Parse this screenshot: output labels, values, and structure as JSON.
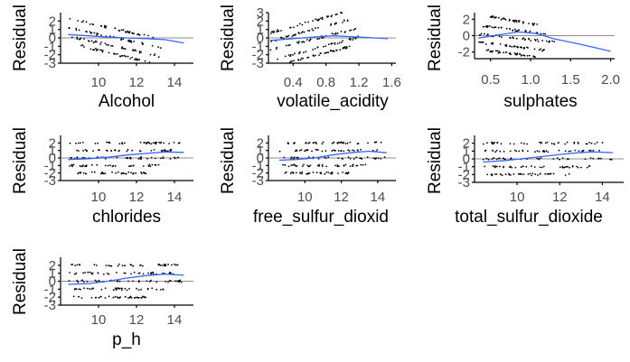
{
  "chart_data": [
    {
      "type": "scatter",
      "xlabel": "Alcohol",
      "ylabel": "Residual",
      "xlim": [
        8.0,
        15.0
      ],
      "ylim": [
        -3.0,
        3.0
      ],
      "xticks": [
        "10",
        "12",
        "14"
      ],
      "yticks": [
        "2",
        "1",
        "0",
        "-1",
        "-2",
        "-3"
      ],
      "bands": [
        [
          8.4,
          13.0,
          2.3,
          0.0
        ],
        [
          8.4,
          13.3,
          1.2,
          -1.2
        ],
        [
          8.4,
          13.3,
          0.2,
          -2.2
        ],
        [
          9.0,
          12.8,
          -0.9,
          -3.0
        ]
      ],
      "smooth": [
        [
          8.4,
          0.4
        ],
        [
          9.5,
          0.25
        ],
        [
          10.5,
          0.1
        ],
        [
          11.5,
          0.0
        ],
        [
          12.5,
          -0.1
        ],
        [
          13.5,
          -0.2
        ],
        [
          14.5,
          -0.6
        ]
      ],
      "ref_y": 0,
      "grid": false,
      "smooth_color": "#3366ff"
    },
    {
      "type": "scatter",
      "xlabel": "volatile_acidity",
      "ylabel": "Residual",
      "xlim": [
        0.1,
        1.65
      ],
      "ylim": [
        -3.0,
        3.0
      ],
      "xticks": [
        "0.4",
        "0.8",
        "1.2",
        "1.6"
      ],
      "yticks": [
        "3",
        "2",
        "1",
        "0",
        "-1",
        "-2",
        "-3"
      ],
      "bands": [
        [
          0.12,
          1.0,
          0.6,
          3.0
        ],
        [
          0.12,
          1.1,
          -0.4,
          2.2
        ],
        [
          0.12,
          1.2,
          -1.4,
          1.2
        ],
        [
          0.2,
          1.2,
          -2.5,
          0.1
        ],
        [
          0.3,
          1.1,
          -3.0,
          -1.0
        ]
      ],
      "smooth": [
        [
          0.12,
          -0.3
        ],
        [
          0.4,
          -0.1
        ],
        [
          0.7,
          0.15
        ],
        [
          0.9,
          0.25
        ],
        [
          1.1,
          0.15
        ],
        [
          1.3,
          0.05
        ],
        [
          1.55,
          -0.1
        ]
      ],
      "ref_y": 0,
      "grid": false,
      "smooth_color": "#3366ff"
    },
    {
      "type": "scatter",
      "xlabel": "sulphates",
      "ylabel": "Residual",
      "xlim": [
        0.3,
        2.05
      ],
      "ylim": [
        -2.8,
        2.8
      ],
      "xticks": [
        "0.5",
        "1.0",
        "1.5",
        "2.0"
      ],
      "yticks": [
        "2",
        "0",
        "-2"
      ],
      "bands": [
        [
          0.5,
          1.1,
          2.3,
          1.3
        ],
        [
          0.4,
          1.2,
          1.2,
          0.2
        ],
        [
          0.35,
          1.3,
          0.2,
          -0.8
        ],
        [
          0.35,
          1.2,
          -0.8,
          -1.8
        ],
        [
          0.45,
          1.1,
          -1.8,
          -2.6
        ]
      ],
      "smooth": [
        [
          0.35,
          -0.3
        ],
        [
          0.6,
          0.1
        ],
        [
          0.85,
          0.45
        ],
        [
          1.05,
          0.3
        ],
        [
          1.3,
          -0.4
        ],
        [
          1.6,
          -1.0
        ],
        [
          2.0,
          -1.9
        ]
      ],
      "ref_y": 0,
      "grid": false,
      "smooth_color": "#3366ff"
    },
    {
      "type": "scatter",
      "xlabel": "chlorides",
      "ylabel": "Residual",
      "xlim": [
        8.0,
        15.0
      ],
      "ylim": [
        -3.0,
        3.0
      ],
      "xticks": [
        "10",
        "12",
        "14"
      ],
      "yticks": [
        "2",
        "1",
        "0",
        "-1",
        "-2",
        "-3"
      ],
      "bands": [
        [
          8.4,
          14.0,
          1.0,
          1.0
        ],
        [
          8.4,
          14.5,
          0.0,
          0.0
        ],
        [
          8.4,
          13.5,
          -1.0,
          -1.0
        ],
        [
          8.6,
          12.5,
          -2.0,
          -2.0
        ],
        [
          8.4,
          14.3,
          2.0,
          2.0
        ]
      ],
      "smooth": [
        [
          8.4,
          -0.2
        ],
        [
          9.5,
          -0.1
        ],
        [
          10.5,
          0.1
        ],
        [
          11.5,
          0.4
        ],
        [
          12.5,
          0.6
        ],
        [
          13.5,
          0.8
        ],
        [
          14.5,
          0.75
        ]
      ],
      "ref_y": 0,
      "grid": false,
      "smooth_color": "#3366ff"
    },
    {
      "type": "scatter",
      "xlabel": "free_sulfur_dioxid",
      "ylabel": "Residual",
      "xlim": [
        8.0,
        15.0
      ],
      "ylim": [
        -3.0,
        3.0
      ],
      "xticks": [
        "10",
        "12",
        "14"
      ],
      "yticks": [
        "2",
        "1",
        "0",
        "-1",
        "-2",
        "-3"
      ],
      "bands": [
        [
          8.6,
          14.0,
          1.0,
          1.0
        ],
        [
          8.6,
          14.5,
          0.0,
          0.0
        ],
        [
          8.6,
          13.5,
          -1.0,
          -1.0
        ],
        [
          8.8,
          12.5,
          -2.0,
          -2.0
        ],
        [
          9.0,
          14.3,
          2.0,
          2.0
        ]
      ],
      "smooth": [
        [
          8.6,
          -0.3
        ],
        [
          9.5,
          -0.2
        ],
        [
          10.5,
          0.0
        ],
        [
          11.5,
          0.4
        ],
        [
          12.5,
          0.7
        ],
        [
          13.5,
          0.9
        ],
        [
          14.5,
          0.7
        ]
      ],
      "ref_y": 0,
      "grid": false,
      "smooth_color": "#3366ff"
    },
    {
      "type": "scatter",
      "xlabel": "total_sulfur_dioxide",
      "ylabel": "Residual",
      "xlim": [
        8.0,
        15.0
      ],
      "ylim": [
        -3.0,
        3.0
      ],
      "xticks": [
        "10",
        "12",
        "14"
      ],
      "yticks": [
        "2",
        "1",
        "0",
        "-1",
        "-2",
        "-3"
      ],
      "bands": [
        [
          8.4,
          14.0,
          1.0,
          1.0
        ],
        [
          8.4,
          14.5,
          0.0,
          0.0
        ],
        [
          8.4,
          13.5,
          -1.0,
          -1.0
        ],
        [
          8.6,
          12.5,
          -2.0,
          -2.0
        ],
        [
          8.4,
          14.3,
          2.0,
          2.0
        ]
      ],
      "smooth": [
        [
          8.4,
          -0.4
        ],
        [
          9.5,
          -0.2
        ],
        [
          10.5,
          0.1
        ],
        [
          11.5,
          0.4
        ],
        [
          12.5,
          0.7
        ],
        [
          13.5,
          0.9
        ],
        [
          14.5,
          0.8
        ]
      ],
      "ref_y": 0,
      "grid": false,
      "smooth_color": "#3366ff"
    },
    {
      "type": "scatter",
      "xlabel": "p_h",
      "ylabel": "Residual",
      "xlim": [
        8.0,
        15.0
      ],
      "ylim": [
        -3.0,
        3.0
      ],
      "xticks": [
        "10",
        "12",
        "14"
      ],
      "yticks": [
        "2",
        "1",
        "0",
        "-1",
        "-2",
        "-3"
      ],
      "bands": [
        [
          8.4,
          14.0,
          1.0,
          1.0
        ],
        [
          8.4,
          14.5,
          0.0,
          0.0
        ],
        [
          8.4,
          13.5,
          -1.0,
          -1.0
        ],
        [
          8.6,
          12.5,
          -2.0,
          -2.0
        ],
        [
          8.4,
          14.3,
          2.0,
          2.0
        ]
      ],
      "smooth": [
        [
          8.4,
          -0.4
        ],
        [
          9.5,
          -0.3
        ],
        [
          10.5,
          0.0
        ],
        [
          11.5,
          0.4
        ],
        [
          12.5,
          0.7
        ],
        [
          13.5,
          0.9
        ],
        [
          14.5,
          0.75
        ]
      ],
      "ref_y": 0,
      "grid": false,
      "smooth_color": "#3366ff"
    }
  ]
}
